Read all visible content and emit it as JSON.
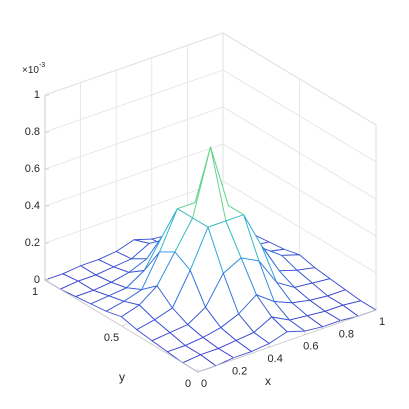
{
  "chart_data": {
    "type": "mesh",
    "xlabel": "x",
    "ylabel": "y",
    "z_multiplier": {
      "base": "×10",
      "exponent": "-3"
    },
    "x": [
      0,
      0.1,
      0.2,
      0.3,
      0.4,
      0.5,
      0.6,
      0.7,
      0.8,
      0.9,
      1
    ],
    "y": [
      0,
      0.1,
      0.2,
      0.3,
      0.4,
      0.5,
      0.6,
      0.7,
      0.8,
      0.9,
      1
    ],
    "z": [
      [
        0,
        0,
        0.01,
        0.01,
        0.02,
        0.05,
        0.02,
        0.01,
        0.01,
        0,
        0
      ],
      [
        0,
        0.01,
        0.01,
        0.02,
        0.03,
        0.08,
        0.03,
        0.02,
        0.01,
        0.01,
        0
      ],
      [
        0.01,
        0.01,
        0.02,
        0.04,
        0.08,
        0.15,
        0.08,
        0.04,
        0.02,
        0.01,
        0.01
      ],
      [
        0.02,
        0.03,
        0.04,
        0.1,
        0.25,
        0.3,
        0.25,
        0.1,
        0.04,
        0.03,
        0.02
      ],
      [
        0.03,
        0.05,
        0.08,
        0.25,
        0.45,
        0.45,
        0.45,
        0.25,
        0.08,
        0.05,
        0.03
      ],
      [
        0.05,
        0.08,
        0.15,
        0.3,
        0.45,
        0.8,
        0.45,
        0.3,
        0.15,
        0.08,
        0.05
      ],
      [
        0.03,
        0.05,
        0.08,
        0.25,
        0.45,
        0.45,
        0.45,
        0.25,
        0.08,
        0.05,
        0.03
      ],
      [
        0.02,
        0.03,
        0.04,
        0.1,
        0.25,
        0.3,
        0.25,
        0.1,
        0.04,
        0.03,
        0.02
      ],
      [
        0.01,
        0.01,
        0.02,
        0.04,
        0.08,
        0.15,
        0.08,
        0.04,
        0.02,
        0.01,
        0.01
      ],
      [
        0,
        0.01,
        0.01,
        0.02,
        0.03,
        0.08,
        0.03,
        0.02,
        0.01,
        0.01,
        0
      ],
      [
        0,
        0,
        0.01,
        0.01,
        0.02,
        0.05,
        0.02,
        0.01,
        0.01,
        0,
        0
      ]
    ],
    "xlim": [
      0,
      1
    ],
    "ylim": [
      0,
      1
    ],
    "zlim": [
      0,
      1
    ],
    "xticks": [
      0,
      0.2,
      0.4,
      0.6,
      0.8,
      1
    ],
    "yticks": [
      0,
      0.5,
      1
    ],
    "zticks": [
      0,
      0.2,
      0.4,
      0.6,
      0.8,
      1
    ],
    "grid": true
  }
}
